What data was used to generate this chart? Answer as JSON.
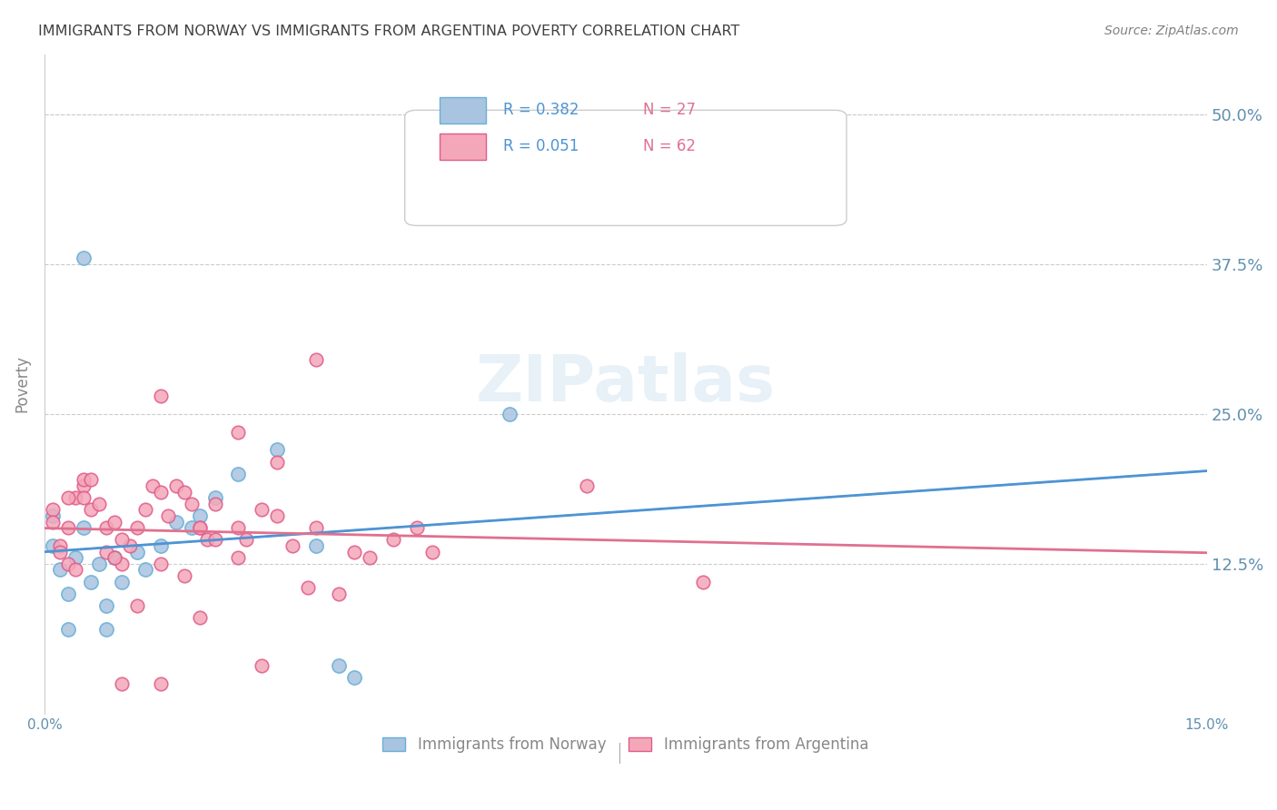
{
  "title": "IMMIGRANTS FROM NORWAY VS IMMIGRANTS FROM ARGENTINA POVERTY CORRELATION CHART",
  "source": "Source: ZipAtlas.com",
  "ylabel": "Poverty",
  "ytick_labels": [
    "50.0%",
    "37.5%",
    "25.0%",
    "12.5%"
  ],
  "ytick_values": [
    0.5,
    0.375,
    0.25,
    0.125
  ],
  "ylim": [
    0.0,
    0.55
  ],
  "xlim": [
    0.0,
    0.15
  ],
  "norway_R": "0.382",
  "norway_N": "27",
  "argentina_R": "0.051",
  "argentina_N": "62",
  "norway_color": "#a8c4e0",
  "norway_edge": "#6aaed6",
  "argentina_color": "#f4a7b9",
  "argentina_edge": "#e05c8a",
  "norway_line_color": "#4d94d4",
  "argentina_line_color": "#e07090",
  "trend_line_color": "#b0c8e0",
  "watermark_color": "#d0e4f0",
  "title_color": "#404040",
  "source_color": "#808080",
  "axis_label_color": "#6090b0",
  "legend_R_color": "#4d94d4",
  "legend_N_color": "#e07090",
  "norway_scatter_x": [
    0.001,
    0.002,
    0.003,
    0.004,
    0.005,
    0.006,
    0.007,
    0.008,
    0.009,
    0.01,
    0.012,
    0.013,
    0.015,
    0.017,
    0.019,
    0.02,
    0.022,
    0.025,
    0.03,
    0.035,
    0.038,
    0.04,
    0.005,
    0.003,
    0.008,
    0.06,
    0.001
  ],
  "norway_scatter_y": [
    0.14,
    0.12,
    0.1,
    0.13,
    0.155,
    0.11,
    0.125,
    0.09,
    0.13,
    0.11,
    0.135,
    0.12,
    0.14,
    0.16,
    0.155,
    0.165,
    0.18,
    0.2,
    0.22,
    0.14,
    0.04,
    0.03,
    0.38,
    0.07,
    0.07,
    0.25,
    0.165
  ],
  "argentina_scatter_x": [
    0.001,
    0.002,
    0.003,
    0.004,
    0.005,
    0.006,
    0.007,
    0.008,
    0.009,
    0.01,
    0.011,
    0.012,
    0.013,
    0.014,
    0.015,
    0.016,
    0.017,
    0.018,
    0.019,
    0.02,
    0.021,
    0.022,
    0.025,
    0.026,
    0.028,
    0.03,
    0.032,
    0.034,
    0.035,
    0.038,
    0.04,
    0.042,
    0.045,
    0.048,
    0.05,
    0.001,
    0.002,
    0.003,
    0.004,
    0.005,
    0.006,
    0.008,
    0.009,
    0.01,
    0.012,
    0.015,
    0.018,
    0.02,
    0.022,
    0.025,
    0.07,
    0.085,
    0.035,
    0.025,
    0.015,
    0.03,
    0.028,
    0.02,
    0.015,
    0.01,
    0.005,
    0.003
  ],
  "argentina_scatter_y": [
    0.17,
    0.14,
    0.155,
    0.18,
    0.19,
    0.17,
    0.175,
    0.155,
    0.16,
    0.125,
    0.14,
    0.155,
    0.17,
    0.19,
    0.185,
    0.165,
    0.19,
    0.185,
    0.175,
    0.155,
    0.145,
    0.175,
    0.155,
    0.145,
    0.17,
    0.165,
    0.14,
    0.105,
    0.155,
    0.1,
    0.135,
    0.13,
    0.145,
    0.155,
    0.135,
    0.16,
    0.135,
    0.125,
    0.12,
    0.195,
    0.195,
    0.135,
    0.13,
    0.145,
    0.09,
    0.125,
    0.115,
    0.155,
    0.145,
    0.13,
    0.19,
    0.11,
    0.295,
    0.235,
    0.265,
    0.21,
    0.04,
    0.08,
    0.025,
    0.025,
    0.18,
    0.18
  ]
}
